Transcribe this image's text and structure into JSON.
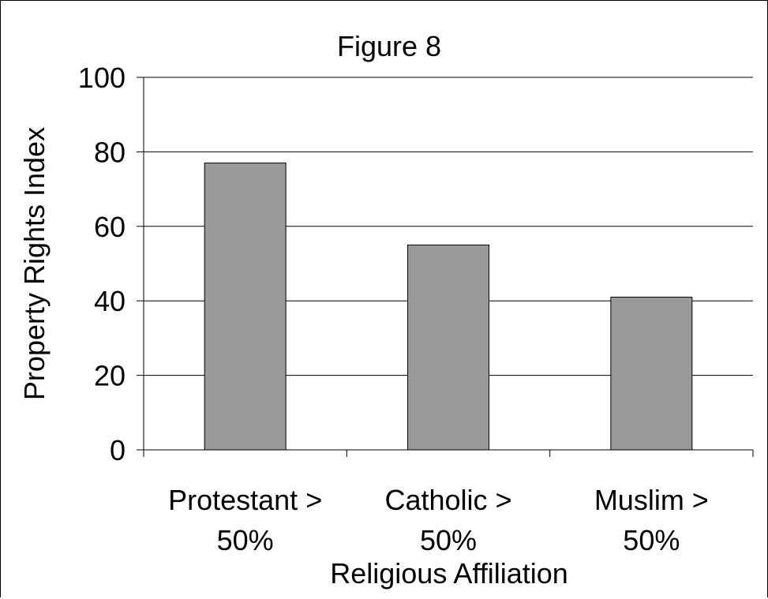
{
  "chart_data": {
    "type": "bar",
    "title": "Figure 8",
    "xlabel": "Religious Affiliation",
    "ylabel": "Property Rights Index",
    "categories": [
      [
        "Protestant >",
        "50%"
      ],
      [
        "Catholic >",
        "50%"
      ],
      [
        "Muslim >",
        "50%"
      ]
    ],
    "values": [
      77,
      55,
      41
    ],
    "ylim": [
      0,
      100
    ],
    "yticks": [
      "0",
      "20",
      "40",
      "60",
      "80",
      "100"
    ],
    "ytick_values": [
      0,
      20,
      40,
      60,
      80,
      100
    ],
    "grid": "horizontal",
    "legend": "none",
    "colors": {
      "bar": "#999999",
      "bar_stroke": "#000000",
      "grid": "#000000",
      "axis": "#000000"
    }
  }
}
